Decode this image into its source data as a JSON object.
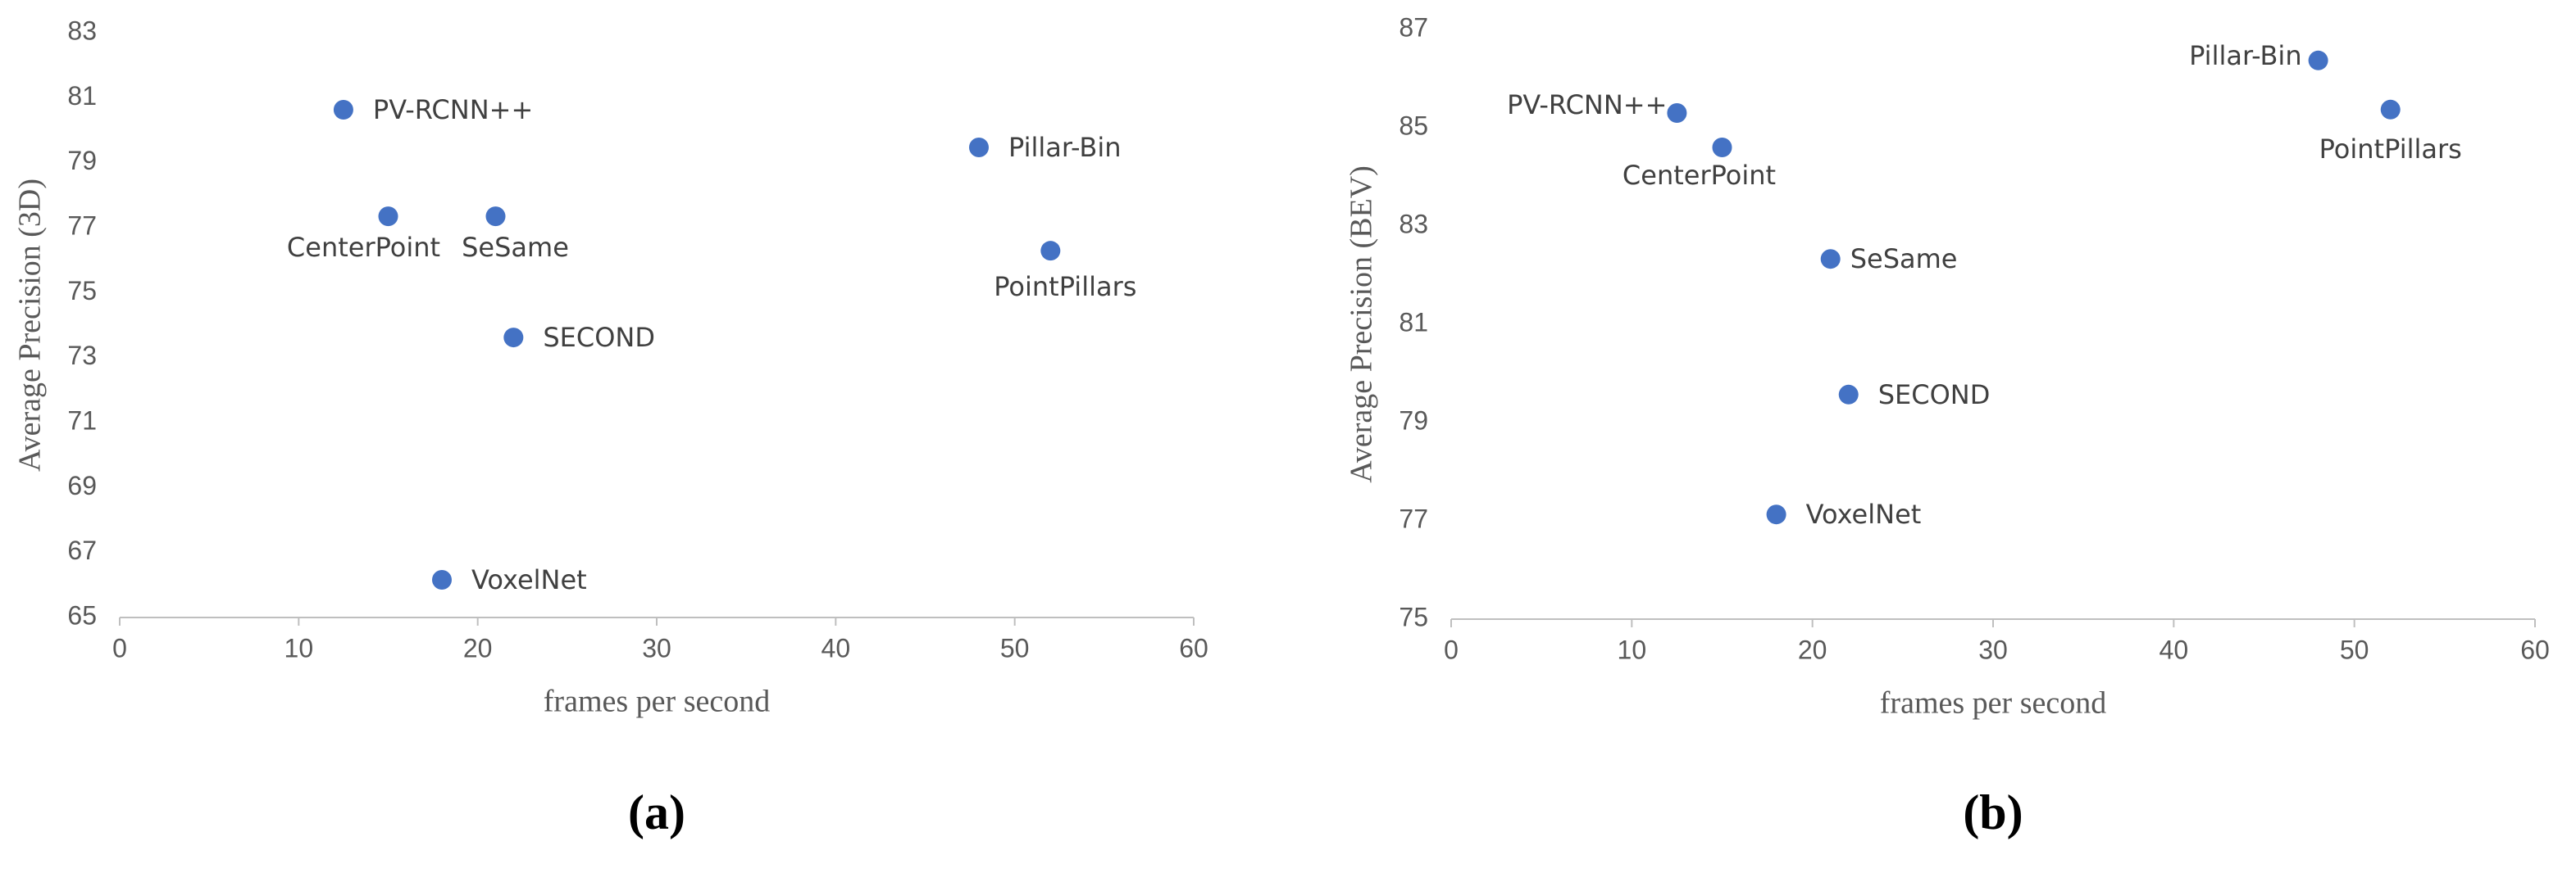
{
  "chart_data": [
    {
      "type": "scatter",
      "caption": "(a)",
      "x_label": "frames per second",
      "y_label": "Average Precision (3D)",
      "x": [
        12.5,
        15,
        21,
        22,
        18,
        48,
        52
      ],
      "values": [
        80.63,
        77.35,
        77.35,
        73.62,
        66.16,
        79.47,
        76.29
      ],
      "labels": [
        "PV-RCNN++",
        "CenterPoint",
        "SeSame",
        "SECOND",
        "VoxelNet",
        "Pillar-Bin",
        "PointPillars"
      ],
      "color": "#4472c4",
      "xlim": [
        0,
        60
      ],
      "xticks": [
        0,
        10,
        20,
        30,
        40,
        50,
        60
      ],
      "ylim": [
        65,
        83
      ],
      "yticks": [
        65,
        67,
        69,
        71,
        73,
        75,
        77,
        79,
        81,
        83
      ]
    },
    {
      "type": "scatter",
      "caption": "(b)",
      "x_label": "frames per second",
      "y_label": "Average Precision (BEV)",
      "x": [
        12.5,
        15,
        21,
        22,
        18,
        48,
        52
      ],
      "values": [
        85.3,
        84.6,
        82.33,
        79.57,
        77.13,
        86.37,
        85.37
      ],
      "labels": [
        "PV-RCNN++",
        "CenterPoint",
        "SeSame",
        "SECOND",
        "VoxelNet",
        "Pillar-Bin",
        "PointPillars"
      ],
      "color": "#4472c4",
      "xlim": [
        0,
        60
      ],
      "xticks": [
        0,
        10,
        20,
        30,
        40,
        50,
        60
      ],
      "ylim": [
        75,
        87
      ],
      "yticks": [
        75,
        77,
        79,
        81,
        83,
        85,
        87
      ]
    }
  ]
}
